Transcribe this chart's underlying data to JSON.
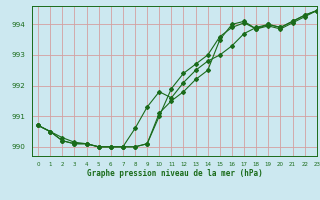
{
  "title": "Graphe pression niveau de la mer (hPa)",
  "background_color": "#cce8f0",
  "grid_color": "#d4a0a0",
  "line_color": "#1a6b1a",
  "xlim": [
    -0.5,
    23
  ],
  "ylim": [
    989.7,
    994.6
  ],
  "yticks": [
    990,
    991,
    992,
    993,
    994
  ],
  "xticks": [
    0,
    1,
    2,
    3,
    4,
    5,
    6,
    7,
    8,
    9,
    10,
    11,
    12,
    13,
    14,
    15,
    16,
    17,
    18,
    19,
    20,
    21,
    22,
    23
  ],
  "series1": [
    990.7,
    990.5,
    990.2,
    990.1,
    990.1,
    990.0,
    990.0,
    990.0,
    990.0,
    990.1,
    991.1,
    991.5,
    991.8,
    992.2,
    992.5,
    993.5,
    994.0,
    994.1,
    993.85,
    994.0,
    993.9,
    994.1,
    994.3,
    994.45
  ],
  "series2": [
    990.7,
    990.5,
    990.2,
    990.1,
    990.1,
    990.0,
    990.0,
    990.0,
    990.6,
    991.3,
    991.8,
    991.6,
    992.1,
    992.5,
    992.8,
    993.0,
    993.3,
    993.7,
    993.9,
    994.0,
    993.9,
    994.1,
    994.3,
    994.45
  ],
  "series3": [
    990.7,
    990.5,
    990.3,
    990.15,
    990.1,
    990.0,
    990.0,
    990.0,
    990.0,
    990.1,
    991.0,
    991.9,
    992.4,
    992.7,
    993.0,
    993.6,
    993.9,
    994.05,
    993.85,
    993.95,
    993.85,
    994.05,
    994.25,
    994.45
  ]
}
